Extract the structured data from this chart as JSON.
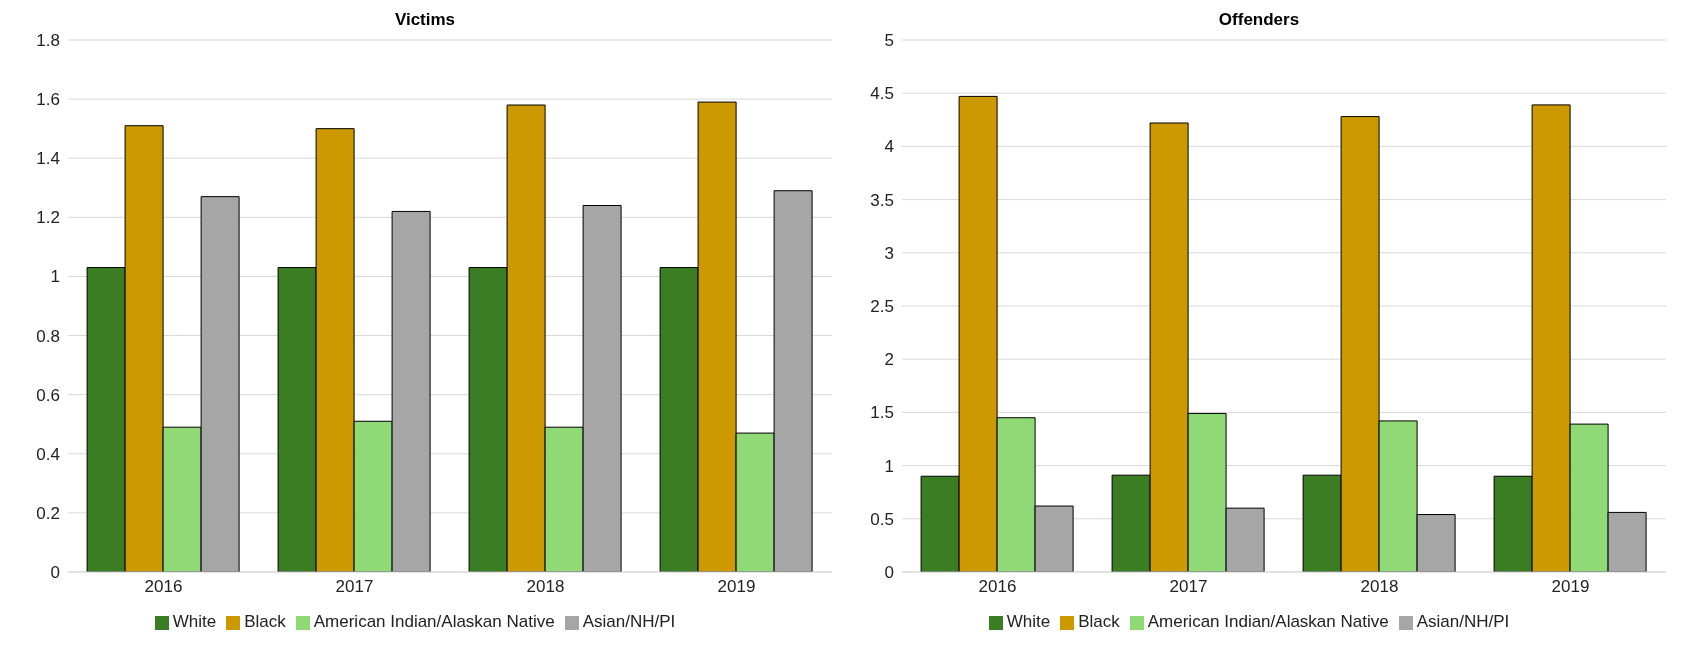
{
  "chart_data": [
    {
      "type": "bar",
      "title": "Victims",
      "categories": [
        "2016",
        "2017",
        "2018",
        "2019"
      ],
      "series": [
        {
          "name": "White",
          "color": "#3b7d23",
          "values": [
            1.03,
            1.03,
            1.03,
            1.03
          ]
        },
        {
          "name": "Black",
          "color": "#cc9900",
          "values": [
            1.51,
            1.5,
            1.58,
            1.59
          ]
        },
        {
          "name": "American Indian/Alaskan Native",
          "color": "#8fd977",
          "values": [
            0.49,
            0.51,
            0.49,
            0.47
          ]
        },
        {
          "name": "Asian/NH/PI",
          "color": "#a6a6a6",
          "values": [
            1.27,
            1.22,
            1.24,
            1.29
          ]
        }
      ],
      "ylim": [
        0,
        1.8
      ],
      "yticks": [
        0,
        0.2,
        0.4,
        0.6,
        0.8,
        1,
        1.2,
        1.4,
        1.6,
        1.8
      ],
      "grid": "y",
      "legend": "bottom"
    },
    {
      "type": "bar",
      "title": "Offenders",
      "categories": [
        "2016",
        "2017",
        "2018",
        "2019"
      ],
      "series": [
        {
          "name": "White",
          "color": "#3b7d23",
          "values": [
            0.9,
            0.91,
            0.91,
            0.9
          ]
        },
        {
          "name": "Black",
          "color": "#cc9900",
          "values": [
            4.47,
            4.22,
            4.28,
            4.39
          ]
        },
        {
          "name": "American Indian/Alaskan Native",
          "color": "#8fd977",
          "values": [
            1.45,
            1.49,
            1.42,
            1.39
          ]
        },
        {
          "name": "Asian/NH/PI",
          "color": "#a6a6a6",
          "values": [
            0.62,
            0.6,
            0.54,
            0.56
          ]
        }
      ],
      "ylim": [
        0,
        5
      ],
      "yticks": [
        0,
        0.5,
        1,
        1.5,
        2,
        2.5,
        3,
        3.5,
        4,
        4.5,
        5
      ],
      "grid": "y",
      "legend": "bottom"
    }
  ]
}
